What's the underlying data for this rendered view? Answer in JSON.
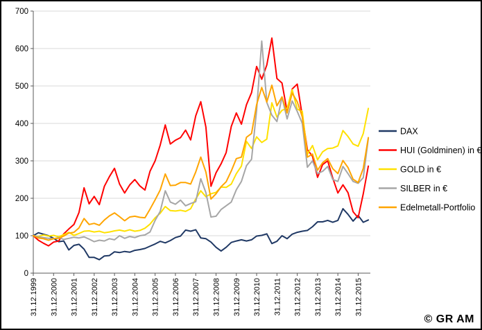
{
  "watermark": "© GR AM",
  "chart_data": {
    "type": "line",
    "title": "",
    "xlabel": "",
    "ylabel": "",
    "ylim": [
      0,
      700
    ],
    "yticks": [
      0,
      100,
      200,
      300,
      400,
      500,
      600,
      700
    ],
    "xlim": [
      2000,
      2016.6
    ],
    "grid": true,
    "legend_position": "right",
    "x_tick_labels_vertical": true,
    "x_ticks": [
      {
        "pos": 2000,
        "label": "31.12.1999"
      },
      {
        "pos": 2001,
        "label": "31.12.2000"
      },
      {
        "pos": 2002,
        "label": "31.12.2001"
      },
      {
        "pos": 2003,
        "label": "31.12.2002"
      },
      {
        "pos": 2004,
        "label": "31.12.2003"
      },
      {
        "pos": 2005,
        "label": "31.12.2004"
      },
      {
        "pos": 2006,
        "label": "31.12.2005"
      },
      {
        "pos": 2007,
        "label": "31.12.2006"
      },
      {
        "pos": 2008,
        "label": "31.12.2007"
      },
      {
        "pos": 2009,
        "label": "31.12.2008"
      },
      {
        "pos": 2010,
        "label": "31.12.2009"
      },
      {
        "pos": 2011,
        "label": "31.12.2010"
      },
      {
        "pos": 2012,
        "label": "31.12.2011"
      },
      {
        "pos": 2013,
        "label": "31.12.2012"
      },
      {
        "pos": 2014,
        "label": "31.12.2013"
      },
      {
        "pos": 2015,
        "label": "31.12.2014"
      },
      {
        "pos": 2016,
        "label": "31.12.2015"
      }
    ],
    "x": [
      2000,
      2000.25,
      2000.5,
      2000.75,
      2001,
      2001.25,
      2001.5,
      2001.75,
      2002,
      2002.25,
      2002.5,
      2002.75,
      2003,
      2003.25,
      2003.5,
      2003.75,
      2004,
      2004.25,
      2004.5,
      2004.75,
      2005,
      2005.25,
      2005.5,
      2005.75,
      2006,
      2006.25,
      2006.5,
      2006.75,
      2007,
      2007.25,
      2007.5,
      2007.75,
      2008,
      2008.25,
      2008.5,
      2008.75,
      2009,
      2009.25,
      2009.5,
      2009.75,
      2010,
      2010.25,
      2010.5,
      2010.75,
      2011,
      2011.25,
      2011.5,
      2011.75,
      2012,
      2012.25,
      2012.5,
      2012.75,
      2013,
      2013.25,
      2013.5,
      2013.75,
      2014,
      2014.25,
      2014.5,
      2014.75,
      2015,
      2015.25,
      2015.5,
      2015.75,
      2016,
      2016.25,
      2016.5
    ],
    "series": [
      {
        "name": "DAX",
        "color": "#1F3864",
        "values": [
          100,
          108,
          104,
          100,
          93,
          84,
          86,
          62,
          74,
          77,
          64,
          42,
          42,
          36,
          46,
          47,
          57,
          55,
          58,
          56,
          61,
          63,
          66,
          72,
          78,
          85,
          81,
          87,
          95,
          99,
          115,
          112,
          116,
          94,
          92,
          83,
          69,
          59,
          69,
          82,
          86,
          89,
          86,
          89,
          99,
          101,
          105,
          79,
          85,
          100,
          92,
          104,
          109,
          112,
          114,
          124,
          137,
          137,
          141,
          136,
          141,
          172,
          157,
          139,
          154,
          136,
          142
        ]
      },
      {
        "name": "HUI (Goldminen) in €",
        "color": "#FF0000",
        "values": [
          100,
          88,
          80,
          73,
          83,
          86,
          105,
          118,
          130,
          162,
          228,
          185,
          205,
          183,
          232,
          258,
          280,
          238,
          214,
          236,
          250,
          233,
          222,
          272,
          300,
          342,
          396,
          345,
          355,
          362,
          382,
          356,
          420,
          458,
          390,
          232,
          268,
          292,
          322,
          392,
          428,
          398,
          450,
          482,
          552,
          518,
          556,
          628,
          520,
          508,
          432,
          492,
          505,
          420,
          330,
          312,
          256,
          290,
          300,
          254,
          214,
          236,
          215,
          164,
          148,
          212,
          286
        ]
      },
      {
        "name": "GOLD in €",
        "color": "#FFE100",
        "values": [
          100,
          98,
          102,
          99,
          101,
          97,
          103,
          109,
          101,
          106,
          112,
          113,
          110,
          112,
          108,
          110,
          113,
          115,
          112,
          116,
          112,
          114,
          120,
          131,
          148,
          160,
          178,
          167,
          166,
          168,
          165,
          172,
          198,
          220,
          204,
          212,
          216,
          230,
          229,
          238,
          266,
          286,
          352,
          333,
          364,
          349,
          358,
          455,
          417,
          435,
          440,
          490,
          438,
          432,
          317,
          341,
          303,
          324,
          333,
          334,
          340,
          381,
          365,
          345,
          339,
          373,
          440
        ]
      },
      {
        "name": "SILBER in €",
        "color": "#A6A6A6",
        "values": [
          100,
          97,
          95,
          93,
          92,
          95,
          90,
          93,
          96,
          94,
          97,
          91,
          84,
          88,
          86,
          92,
          89,
          100,
          93,
          98,
          95,
          100,
          102,
          110,
          141,
          165,
          220,
          190,
          184,
          195,
          180,
          186,
          191,
          252,
          215,
          150,
          152,
          170,
          180,
          190,
          223,
          245,
          287,
          304,
          435,
          620,
          456,
          422,
          405,
          470,
          412,
          460,
          432,
          400,
          283,
          300,
          266,
          272,
          285,
          250,
          245,
          285,
          266,
          245,
          240,
          255,
          360
        ]
      },
      {
        "name": "Edelmetall-Portfolio",
        "color": "#FFA500",
        "values": [
          100,
          94,
          92,
          88,
          92,
          93,
          99,
          107,
          109,
          121,
          146,
          130,
          133,
          128,
          142,
          153,
          161,
          151,
          140,
          150,
          152,
          149,
          148,
          171,
          196,
          222,
          265,
          234,
          235,
          242,
          242,
          238,
          270,
          310,
          270,
          198,
          212,
          231,
          244,
          273,
          306,
          310,
          363,
          373,
          450,
          496,
          457,
          502,
          447,
          471,
          428,
          481,
          458,
          417,
          310,
          318,
          275,
          295,
          306,
          279,
          266,
          301,
          282,
          251,
          242,
          280,
          362
        ]
      }
    ]
  }
}
